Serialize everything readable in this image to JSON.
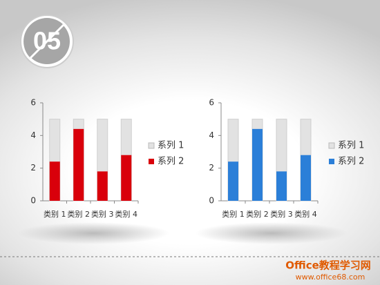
{
  "badge": "05",
  "watermark": {
    "brand": "Office教程学习网",
    "url": "www.office68.com"
  },
  "chart_data": [
    {
      "type": "bar",
      "categories": [
        "类别 1",
        "类别 2",
        "类别 3",
        "类别 4"
      ],
      "series": [
        {
          "name": "系列 1",
          "color": "#e2e2e2",
          "values": [
            5,
            5,
            5,
            5
          ]
        },
        {
          "name": "系列 2",
          "color": "#d9000b",
          "values": [
            2.4,
            4.4,
            1.8,
            2.8
          ]
        }
      ],
      "ylim": [
        0,
        6
      ],
      "yticks": [
        0,
        2,
        4,
        6
      ],
      "overlap": true,
      "legend": "right"
    },
    {
      "type": "bar",
      "categories": [
        "类别 1",
        "类别 2",
        "类别 3",
        "类别 4"
      ],
      "series": [
        {
          "name": "系列 1",
          "color": "#e2e2e2",
          "values": [
            5,
            5,
            5,
            5
          ]
        },
        {
          "name": "系列 2",
          "color": "#2b7fd8",
          "values": [
            2.4,
            4.4,
            1.8,
            2.8
          ]
        }
      ],
      "ylim": [
        0,
        6
      ],
      "yticks": [
        0,
        2,
        4,
        6
      ],
      "overlap": true,
      "legend": "right"
    }
  ]
}
